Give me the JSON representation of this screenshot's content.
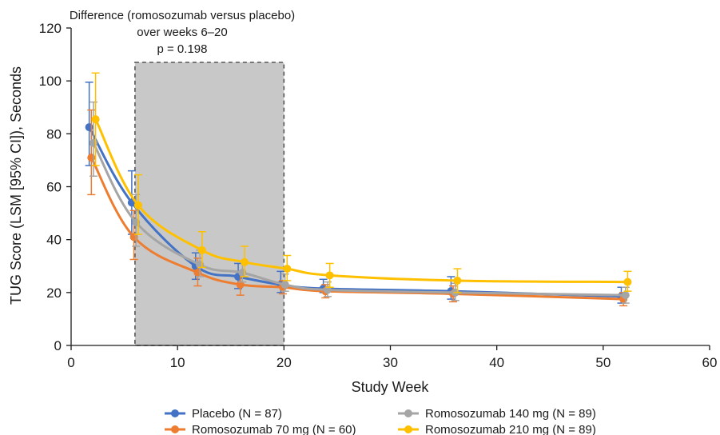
{
  "chart_data": {
    "type": "line",
    "xlabel": "Study Week",
    "ylabel": "TUG Score (LSM [95% CI]), Seconds",
    "xlim": [
      0,
      60
    ],
    "ylim": [
      0,
      120
    ],
    "xticks": [
      0,
      10,
      20,
      30,
      40,
      50,
      60
    ],
    "yticks": [
      0,
      20,
      40,
      60,
      80,
      100,
      120
    ],
    "grid": false,
    "legend_position": "bottom",
    "shaded_region": {
      "x": [
        6,
        20
      ],
      "y": [
        0,
        107
      ],
      "color": "#c8c8c8",
      "border": "dashed"
    },
    "annotation": {
      "lines": [
        "Difference (romosozumab versus placebo)",
        "over weeks 6–20",
        "p = 0.198"
      ]
    },
    "series": [
      {
        "name": "Placebo (N = 87)",
        "color": "#4472c4",
        "x": [
          1.7,
          5.7,
          11.7,
          15.7,
          19.7,
          23.7,
          35.7,
          51.7
        ],
        "y": [
          82.5,
          54,
          30,
          26,
          23,
          21.5,
          20.5,
          18.5
        ],
        "ci_low": [
          68,
          42,
          25,
          21.5,
          20,
          20,
          17.5,
          16
        ],
        "ci_high": [
          99.5,
          66,
          35,
          31,
          28,
          25,
          26,
          22
        ]
      },
      {
        "name": "Romosozumab 70 mg (N = 60)",
        "color": "#ed7d31",
        "x": [
          1.9,
          5.9,
          11.9,
          15.9,
          19.9,
          23.9,
          35.9,
          51.9
        ],
        "y": [
          71,
          41,
          27.5,
          23,
          22,
          20.5,
          19.5,
          17.5
        ],
        "ci_low": [
          57,
          32.5,
          22.5,
          19,
          19.5,
          18,
          16.5,
          15
        ],
        "ci_high": [
          89,
          51,
          33,
          28,
          24.5,
          23,
          22.5,
          20
        ]
      },
      {
        "name": "Romosozumab 140 mg (N = 89)",
        "color": "#a5a5a5",
        "x": [
          2.1,
          6.1,
          12.1,
          16.1,
          20.1,
          24.1,
          36.1,
          52.1
        ],
        "y": [
          76.5,
          46.5,
          30.5,
          27.5,
          23,
          21,
          20,
          19
        ],
        "ci_low": [
          64,
          37.5,
          26,
          24,
          20.5,
          18.5,
          17,
          16
        ],
        "ci_high": [
          92,
          57,
          36,
          32,
          27,
          24,
          23.5,
          22
        ]
      },
      {
        "name": "Romosozumab 210 mg (N = 89)",
        "color": "#ffc000",
        "x": [
          2.3,
          6.3,
          12.3,
          16.3,
          20.3,
          24.3,
          36.3,
          52.3
        ],
        "y": [
          85.5,
          53,
          36,
          31.5,
          29,
          26.5,
          24.5,
          24
        ],
        "ci_low": [
          68,
          42,
          29.5,
          26,
          24.5,
          22,
          20,
          20.5
        ],
        "ci_high": [
          103,
          64.5,
          43,
          37.5,
          34,
          31,
          29,
          28
        ]
      }
    ]
  }
}
